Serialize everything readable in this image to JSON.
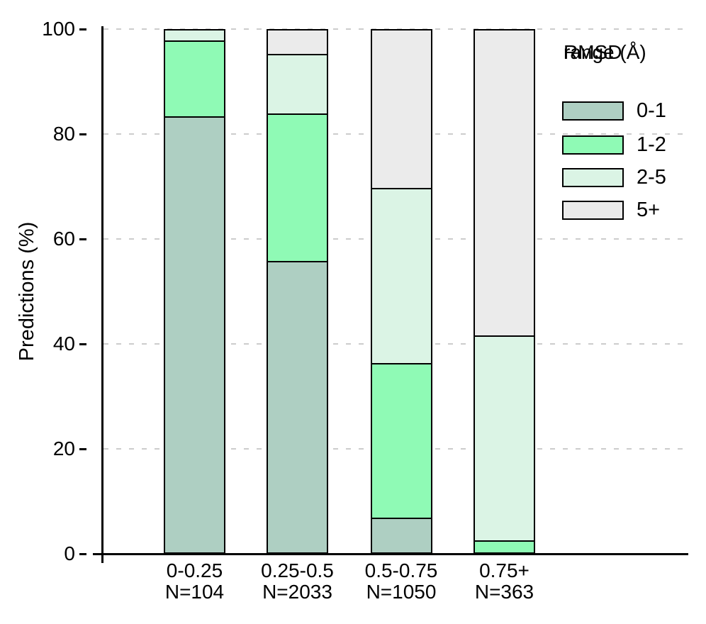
{
  "chart_data": {
    "type": "bar",
    "stacked": true,
    "orientation": "vertical",
    "title": "",
    "xlabel": "",
    "ylabel": "Predictions (%)",
    "ylim": [
      0,
      100
    ],
    "yticks": [
      0,
      20,
      40,
      60,
      80,
      100
    ],
    "grid": {
      "style": "dashed",
      "color": "#cccccc",
      "horizontal_at": [
        20,
        40,
        60,
        80,
        100
      ]
    },
    "categories": [
      {
        "range": "0-0.25",
        "count": "N=104"
      },
      {
        "range": "0.25-0.5",
        "count": "N=2033"
      },
      {
        "range": "0.5-0.75",
        "count": "N=1050"
      },
      {
        "range": "0.75+",
        "count": "N=363"
      }
    ],
    "series": [
      {
        "name": "0-1",
        "color": "#aecfc2",
        "values": [
          83.7,
          56.0,
          6.4,
          0
        ]
      },
      {
        "name": "1-2",
        "color": "#8ffab5",
        "values": [
          14.4,
          28.3,
          29.6,
          2.1
        ]
      },
      {
        "name": "2-5",
        "color": "#dbf4e5",
        "values": [
          1.9,
          11.2,
          33.6,
          39.2
        ]
      },
      {
        "name": "5+",
        "color": "#ebebeb",
        "values": [
          0,
          4.5,
          30.4,
          58.7
        ]
      }
    ],
    "legend": {
      "title_lines": [
        "RMSD",
        "range (Å)"
      ],
      "position": "top-right",
      "entries": [
        "0-1",
        "1-2",
        "2-5",
        "5+"
      ]
    },
    "colors": {
      "axis": "#000000",
      "bar_border": "#000000",
      "gridline": "#cccccc",
      "text": "#000000",
      "background": "#ffffff"
    }
  }
}
